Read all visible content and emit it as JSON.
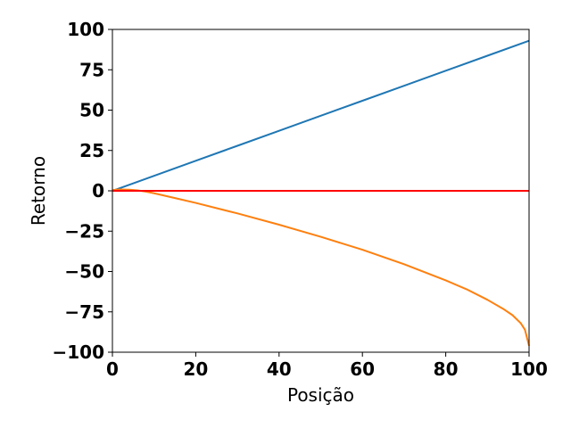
{
  "chart_data": {
    "type": "line",
    "title": "",
    "xlabel": "Posição",
    "ylabel": "Retorno",
    "xlim": [
      0,
      100
    ],
    "ylim": [
      -100,
      100
    ],
    "xticks": [
      0,
      20,
      40,
      60,
      80,
      100
    ],
    "xtick_labels": [
      "0",
      "20",
      "40",
      "60",
      "80",
      "100"
    ],
    "yticks": [
      100,
      75,
      50,
      25,
      0,
      -25,
      -50,
      -75,
      -100
    ],
    "ytick_labels": [
      "100",
      "75",
      "50",
      "25",
      "0",
      "−25",
      "−50",
      "−75",
      "−100"
    ],
    "grid": false,
    "legend": "none",
    "series": [
      {
        "color": "#1f77b4",
        "x": [
          0,
          10,
          20,
          30,
          40,
          50,
          60,
          70,
          80,
          90,
          100
        ],
        "values": [
          0,
          9.3,
          18.6,
          27.9,
          37.2,
          46.5,
          55.8,
          65.1,
          74.4,
          83.7,
          93
        ]
      },
      {
        "color": "#ff7f0e",
        "x": [
          0,
          2,
          4,
          6,
          8,
          10,
          15,
          20,
          30,
          40,
          50,
          60,
          70,
          80,
          85,
          90,
          94,
          96,
          98,
          99,
          100
        ],
        "values": [
          0.5,
          0.8,
          0.7,
          0.3,
          -0.5,
          -1.5,
          -4.5,
          -7.5,
          -14,
          -21,
          -28.5,
          -36.5,
          -45.5,
          -55.5,
          -61,
          -67.5,
          -73.5,
          -77,
          -82,
          -86,
          -96
        ]
      },
      {
        "color": "#ff0000",
        "x": [
          0,
          100
        ],
        "values": [
          0,
          0
        ]
      }
    ]
  }
}
